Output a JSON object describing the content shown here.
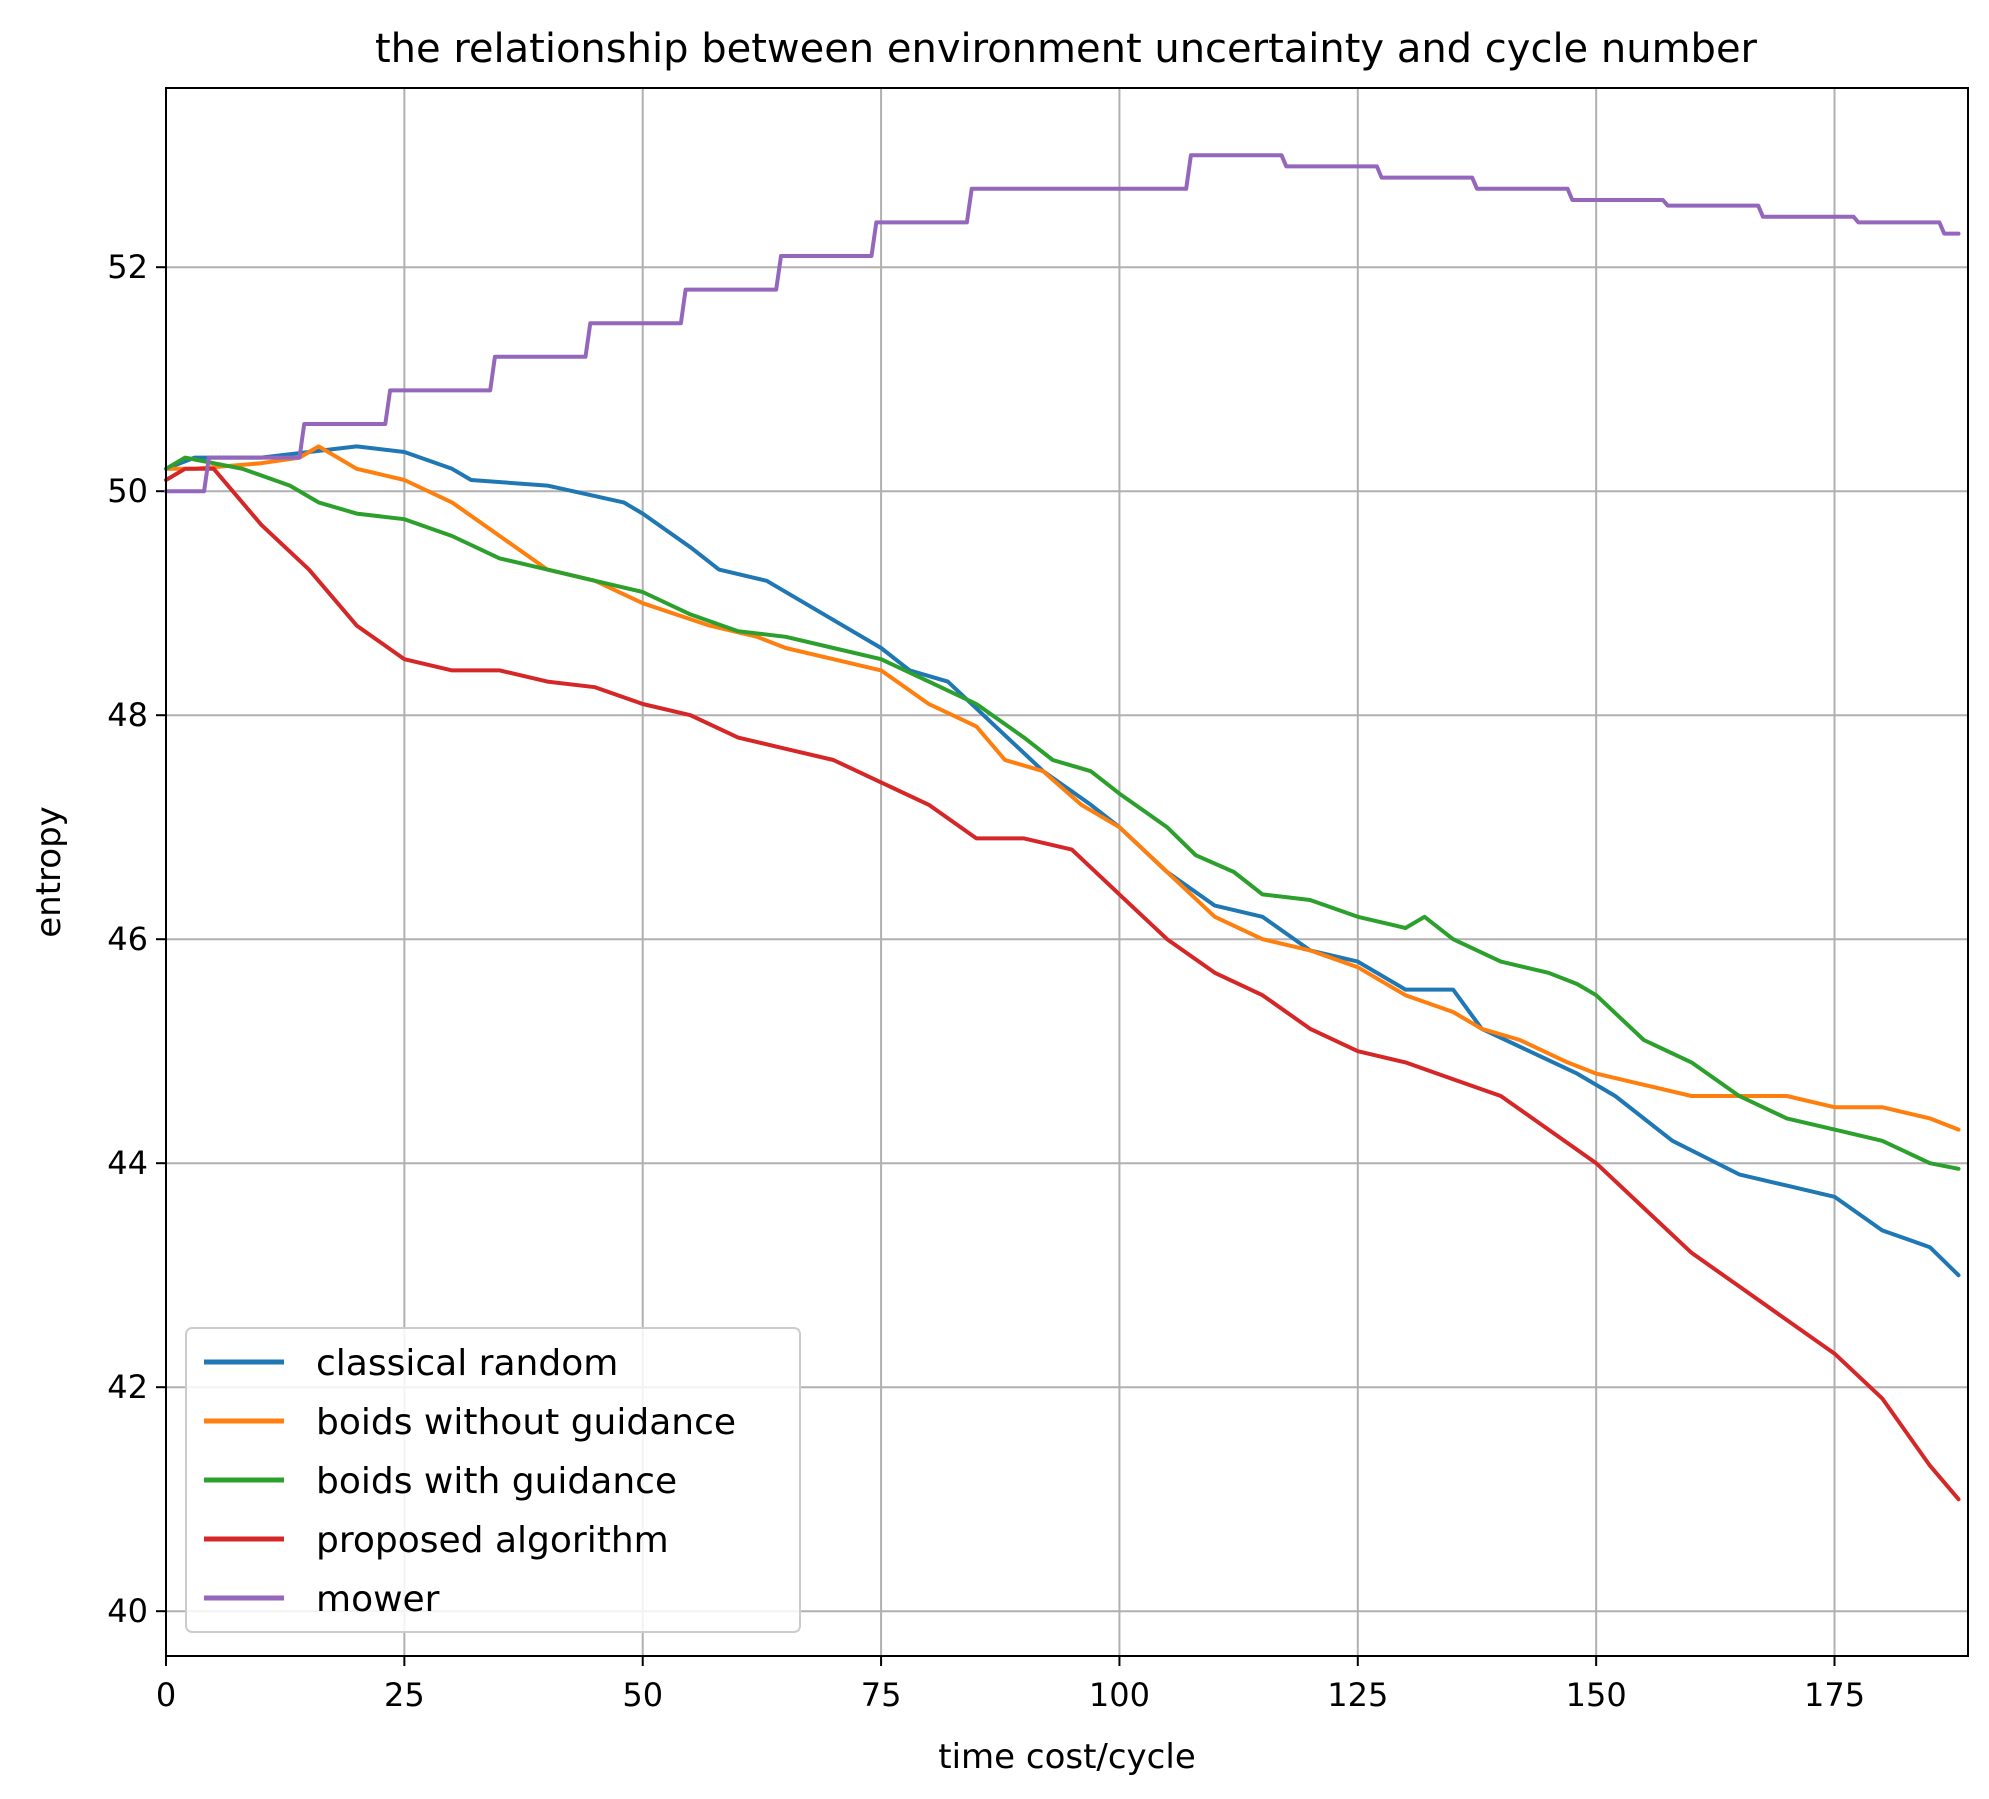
{
  "chart_data": {
    "type": "line",
    "title": "the relationship between environment uncertainty and cycle number",
    "xlabel": "time cost/cycle",
    "ylabel": "entropy",
    "xlim": [
      0,
      189
    ],
    "ylim": [
      39.6,
      53.6
    ],
    "xticks": [
      0,
      25,
      50,
      75,
      100,
      125,
      150,
      175
    ],
    "yticks": [
      40,
      42,
      44,
      46,
      48,
      50,
      52
    ],
    "grid": true,
    "legend_position": "lower-left",
    "series": [
      {
        "name": "classical random",
        "color": "#1f77b4",
        "points": [
          [
            0,
            50.2
          ],
          [
            3,
            50.3
          ],
          [
            10,
            50.3
          ],
          [
            15,
            50.35
          ],
          [
            20,
            50.4
          ],
          [
            25,
            50.35
          ],
          [
            30,
            50.2
          ],
          [
            32,
            50.1
          ],
          [
            40,
            50.05
          ],
          [
            48,
            49.9
          ],
          [
            50,
            49.8
          ],
          [
            55,
            49.5
          ],
          [
            58,
            49.3
          ],
          [
            63,
            49.2
          ],
          [
            67,
            49.0
          ],
          [
            75,
            48.6
          ],
          [
            78,
            48.4
          ],
          [
            82,
            48.3
          ],
          [
            87,
            47.9
          ],
          [
            92,
            47.5
          ],
          [
            97,
            47.2
          ],
          [
            100,
            47.0
          ],
          [
            105,
            46.6
          ],
          [
            110,
            46.3
          ],
          [
            115,
            46.2
          ],
          [
            120,
            45.9
          ],
          [
            125,
            45.8
          ],
          [
            130,
            45.55
          ],
          [
            135,
            45.55
          ],
          [
            138,
            45.2
          ],
          [
            143,
            45.0
          ],
          [
            148,
            44.8
          ],
          [
            152,
            44.6
          ],
          [
            158,
            44.2
          ],
          [
            165,
            43.9
          ],
          [
            170,
            43.8
          ],
          [
            175,
            43.7
          ],
          [
            180,
            43.4
          ],
          [
            185,
            43.25
          ],
          [
            188,
            43.0
          ]
        ]
      },
      {
        "name": "boids without guidance",
        "color": "#ff7f0e",
        "points": [
          [
            0,
            50.2
          ],
          [
            3,
            50.2
          ],
          [
            10,
            50.25
          ],
          [
            14,
            50.3
          ],
          [
            16,
            50.4
          ],
          [
            20,
            50.2
          ],
          [
            25,
            50.1
          ],
          [
            30,
            49.9
          ],
          [
            35,
            49.6
          ],
          [
            40,
            49.3
          ],
          [
            45,
            49.2
          ],
          [
            50,
            49.0
          ],
          [
            57,
            48.8
          ],
          [
            62,
            48.7
          ],
          [
            65,
            48.6
          ],
          [
            70,
            48.5
          ],
          [
            75,
            48.4
          ],
          [
            80,
            48.1
          ],
          [
            85,
            47.9
          ],
          [
            88,
            47.6
          ],
          [
            92,
            47.5
          ],
          [
            96,
            47.2
          ],
          [
            100,
            47.0
          ],
          [
            105,
            46.6
          ],
          [
            110,
            46.2
          ],
          [
            115,
            46.0
          ],
          [
            120,
            45.9
          ],
          [
            125,
            45.75
          ],
          [
            130,
            45.5
          ],
          [
            135,
            45.35
          ],
          [
            138,
            45.2
          ],
          [
            142,
            45.1
          ],
          [
            147,
            44.9
          ],
          [
            150,
            44.8
          ],
          [
            155,
            44.7
          ],
          [
            160,
            44.6
          ],
          [
            165,
            44.6
          ],
          [
            170,
            44.6
          ],
          [
            175,
            44.5
          ],
          [
            180,
            44.5
          ],
          [
            185,
            44.4
          ],
          [
            188,
            44.3
          ]
        ]
      },
      {
        "name": "boids with guidance",
        "color": "#2ca02c",
        "points": [
          [
            0,
            50.2
          ],
          [
            2,
            50.3
          ],
          [
            8,
            50.2
          ],
          [
            13,
            50.05
          ],
          [
            16,
            49.9
          ],
          [
            20,
            49.8
          ],
          [
            25,
            49.75
          ],
          [
            30,
            49.6
          ],
          [
            35,
            49.4
          ],
          [
            40,
            49.3
          ],
          [
            45,
            49.2
          ],
          [
            50,
            49.1
          ],
          [
            55,
            48.9
          ],
          [
            60,
            48.75
          ],
          [
            65,
            48.7
          ],
          [
            70,
            48.6
          ],
          [
            75,
            48.5
          ],
          [
            80,
            48.3
          ],
          [
            85,
            48.1
          ],
          [
            90,
            47.8
          ],
          [
            93,
            47.6
          ],
          [
            97,
            47.5
          ],
          [
            100,
            47.3
          ],
          [
            105,
            47.0
          ],
          [
            108,
            46.75
          ],
          [
            112,
            46.6
          ],
          [
            115,
            46.4
          ],
          [
            120,
            46.35
          ],
          [
            125,
            46.2
          ],
          [
            130,
            46.1
          ],
          [
            132,
            46.2
          ],
          [
            135,
            46.0
          ],
          [
            140,
            45.8
          ],
          [
            145,
            45.7
          ],
          [
            148,
            45.6
          ],
          [
            150,
            45.5
          ],
          [
            155,
            45.1
          ],
          [
            160,
            44.9
          ],
          [
            165,
            44.6
          ],
          [
            170,
            44.4
          ],
          [
            175,
            44.3
          ],
          [
            180,
            44.2
          ],
          [
            185,
            44.0
          ],
          [
            188,
            43.95
          ]
        ]
      },
      {
        "name": "proposed algorithm",
        "color": "#d62728",
        "points": [
          [
            0,
            50.1
          ],
          [
            2,
            50.2
          ],
          [
            5,
            50.2
          ],
          [
            7,
            50.0
          ],
          [
            10,
            49.7
          ],
          [
            15,
            49.3
          ],
          [
            20,
            48.8
          ],
          [
            25,
            48.5
          ],
          [
            30,
            48.4
          ],
          [
            35,
            48.4
          ],
          [
            40,
            48.3
          ],
          [
            45,
            48.25
          ],
          [
            50,
            48.1
          ],
          [
            55,
            48.0
          ],
          [
            60,
            47.8
          ],
          [
            65,
            47.7
          ],
          [
            70,
            47.6
          ],
          [
            75,
            47.4
          ],
          [
            80,
            47.2
          ],
          [
            85,
            46.9
          ],
          [
            90,
            46.9
          ],
          [
            95,
            46.8
          ],
          [
            100,
            46.4
          ],
          [
            105,
            46.0
          ],
          [
            110,
            45.7
          ],
          [
            115,
            45.5
          ],
          [
            120,
            45.2
          ],
          [
            125,
            45.0
          ],
          [
            130,
            44.9
          ],
          [
            135,
            44.75
          ],
          [
            140,
            44.6
          ],
          [
            145,
            44.3
          ],
          [
            150,
            44.0
          ],
          [
            155,
            43.6
          ],
          [
            160,
            43.2
          ],
          [
            165,
            42.9
          ],
          [
            170,
            42.6
          ],
          [
            175,
            42.3
          ],
          [
            180,
            41.9
          ],
          [
            185,
            41.3
          ],
          [
            188,
            41.0
          ]
        ]
      },
      {
        "name": "mower",
        "color": "#9467bd",
        "points": [
          [
            0,
            50.0
          ],
          [
            4,
            50.0
          ],
          [
            4.5,
            50.3
          ],
          [
            14,
            50.3
          ],
          [
            14.5,
            50.6
          ],
          [
            23,
            50.6
          ],
          [
            23.5,
            50.9
          ],
          [
            34,
            50.9
          ],
          [
            34.5,
            51.2
          ],
          [
            44,
            51.2
          ],
          [
            44.5,
            51.5
          ],
          [
            54,
            51.5
          ],
          [
            54.5,
            51.8
          ],
          [
            64,
            51.8
          ],
          [
            64.5,
            52.1
          ],
          [
            74,
            52.1
          ],
          [
            74.5,
            52.4
          ],
          [
            84,
            52.4
          ],
          [
            84.5,
            52.7
          ],
          [
            107,
            52.7
          ],
          [
            107.5,
            53.0
          ],
          [
            117,
            53.0
          ],
          [
            117.5,
            52.9
          ],
          [
            127,
            52.9
          ],
          [
            127.5,
            52.8
          ],
          [
            137,
            52.8
          ],
          [
            137.5,
            52.7
          ],
          [
            147,
            52.7
          ],
          [
            147.5,
            52.6
          ],
          [
            157,
            52.6
          ],
          [
            157.5,
            52.55
          ],
          [
            167,
            52.55
          ],
          [
            167.5,
            52.45
          ],
          [
            177,
            52.45
          ],
          [
            177.5,
            52.4
          ],
          [
            186,
            52.4
          ],
          [
            186.5,
            52.3
          ],
          [
            188,
            52.3
          ]
        ]
      }
    ]
  }
}
